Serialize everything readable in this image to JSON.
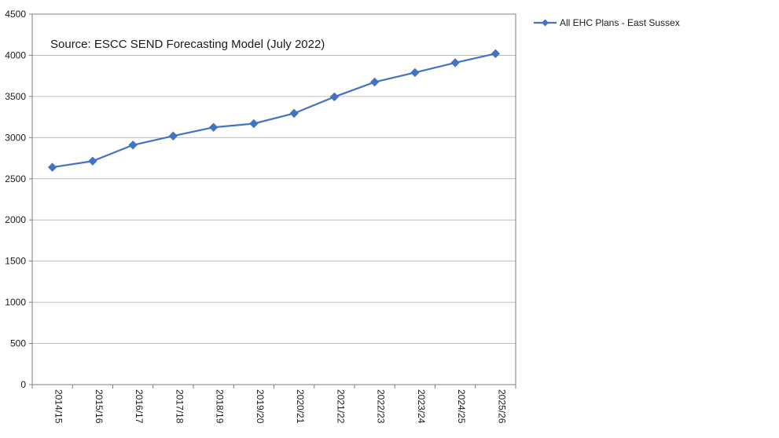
{
  "chart_data": {
    "type": "line",
    "categories": [
      "2014/15",
      "2015/16",
      "2016/17",
      "2017/18",
      "2018/19",
      "2019/20",
      "2020/21",
      "2021/22",
      "2022/23",
      "2023/24",
      "2024/25",
      "2025/26"
    ],
    "series": [
      {
        "name": "All EHC Plans - East Sussex",
        "values": [
          2640,
          2715,
          2910,
          3020,
          3125,
          3170,
          3295,
          3495,
          3675,
          3790,
          3910,
          4020
        ],
        "color": "#4472c4",
        "marker": "diamond"
      }
    ],
    "annotation": "Source: ESCC SEND Forecasting Model (July 2022)",
    "ylim": [
      0,
      4500
    ],
    "yticks": [
      0,
      500,
      1000,
      1500,
      2000,
      2500,
      3000,
      3500,
      4000,
      4500
    ],
    "grid": "horizontal",
    "legend_position": "right-top"
  }
}
